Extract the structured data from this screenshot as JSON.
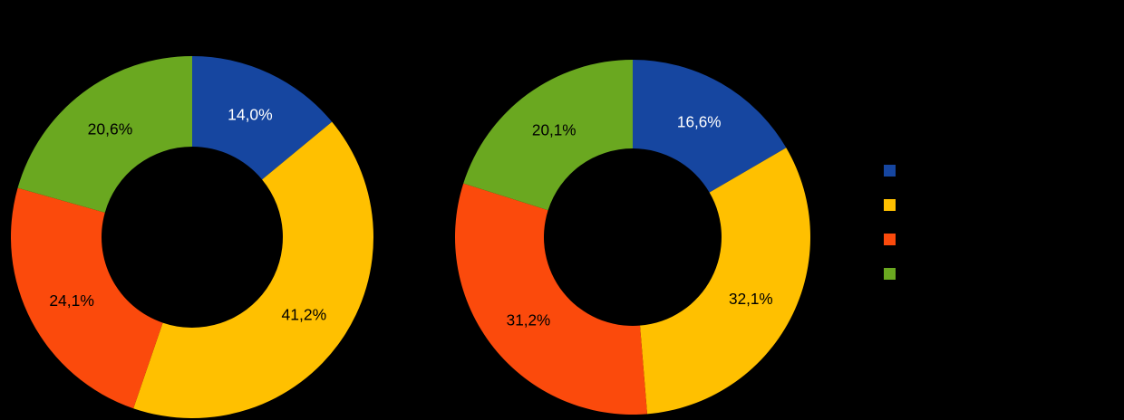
{
  "background_color": "#000000",
  "chart_data": [
    {
      "type": "pie",
      "subtype": "donut",
      "position": "left",
      "start_angle_deg": -90,
      "direction": "clockwise",
      "inner_radius_ratio": 0.5,
      "label_radius_ratio": 0.75,
      "slices": [
        {
          "label": "14,0%",
          "value": 14.0,
          "color": "#1646a0",
          "label_color": "#ffffff"
        },
        {
          "label": "41,2%",
          "value": 41.2,
          "color": "#ffc000",
          "label_color": "#000000"
        },
        {
          "label": "24,1%",
          "value": 24.1,
          "color": "#fb4a0c",
          "label_color": "#000000"
        },
        {
          "label": "20,6%",
          "value": 20.6,
          "color": "#6aa820",
          "label_color": "#000000"
        }
      ]
    },
    {
      "type": "pie",
      "subtype": "donut",
      "position": "right",
      "start_angle_deg": -90,
      "direction": "clockwise",
      "inner_radius_ratio": 0.5,
      "label_radius_ratio": 0.75,
      "slices": [
        {
          "label": "16,6%",
          "value": 16.6,
          "color": "#1646a0",
          "label_color": "#ffffff"
        },
        {
          "label": "32,1%",
          "value": 32.1,
          "color": "#ffc000",
          "label_color": "#000000"
        },
        {
          "label": "31,2%",
          "value": 31.2,
          "color": "#fb4a0c",
          "label_color": "#000000"
        },
        {
          "label": "20,1%",
          "value": 20.1,
          "color": "#6aa820",
          "label_color": "#000000"
        }
      ]
    }
  ],
  "legend": {
    "position": "right",
    "swatches": [
      "#1646a0",
      "#ffc000",
      "#fb4a0c",
      "#6aa820"
    ]
  }
}
